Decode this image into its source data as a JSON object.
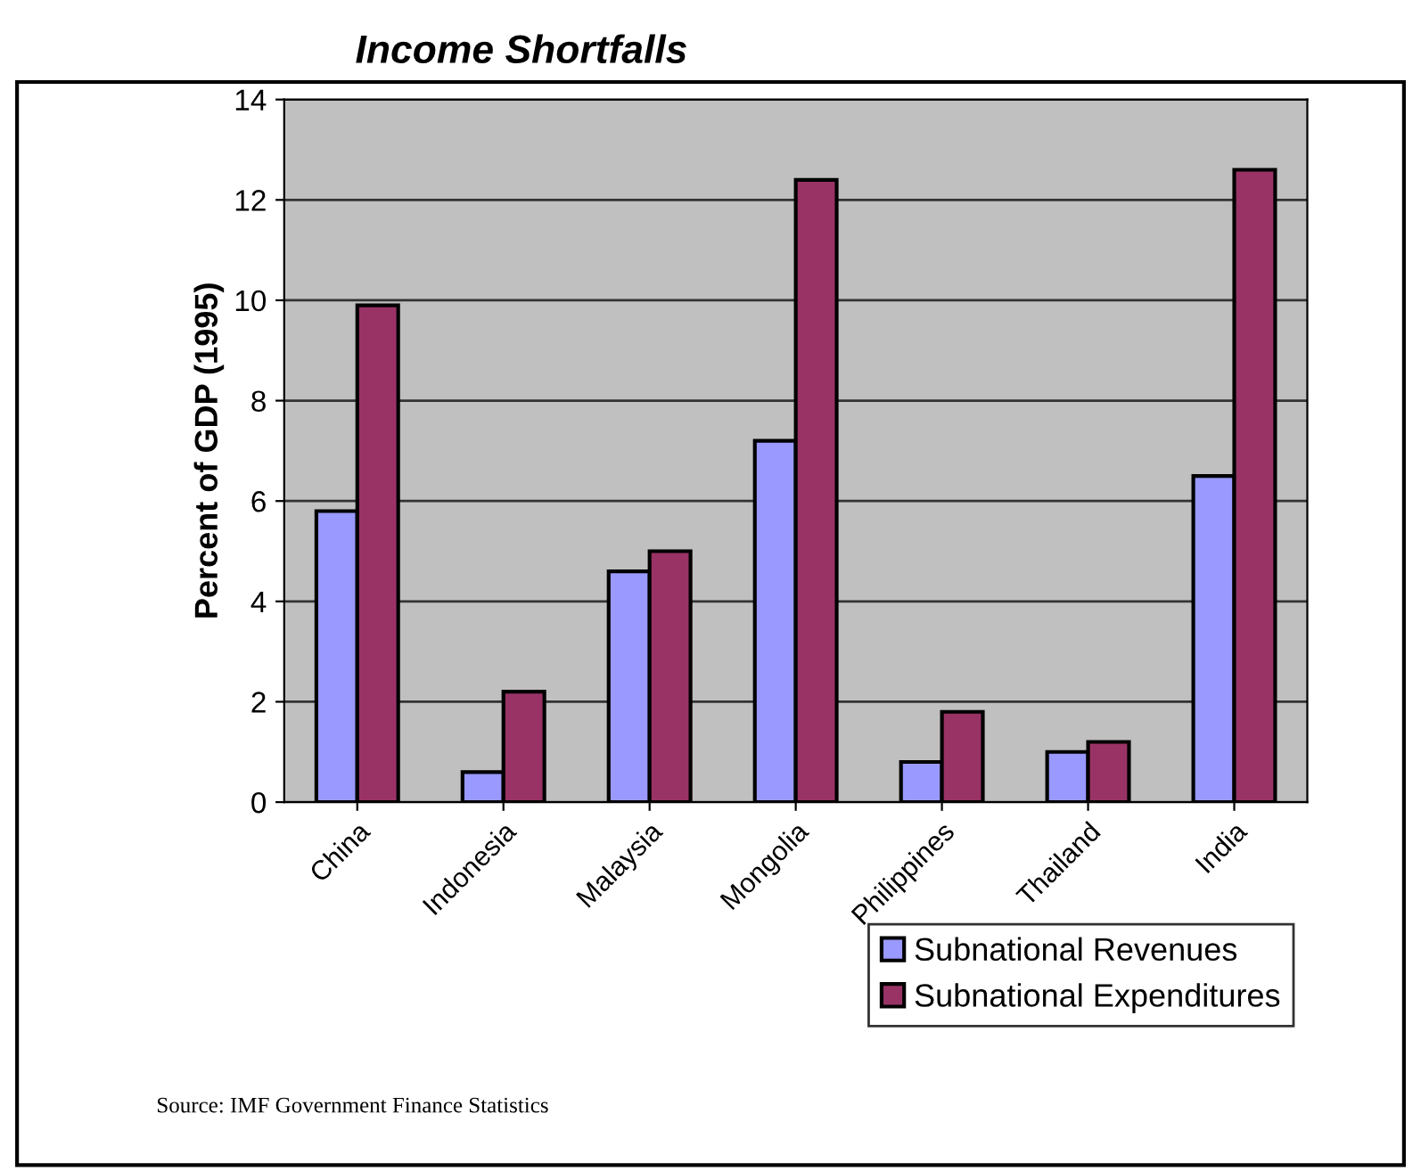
{
  "chart_data": {
    "type": "bar",
    "title": "Income Shortfalls",
    "ylabel": "Percent of GDP (1995)",
    "categories": [
      "China",
      "Indonesia",
      "Malaysia",
      "Mongolia",
      "Philippines",
      "Thailand",
      "India"
    ],
    "series": [
      {
        "name": "Subnational Revenues",
        "color": "#9999ff",
        "values": [
          5.8,
          0.6,
          4.6,
          7.2,
          0.8,
          1.0,
          6.5
        ]
      },
      {
        "name": "Subnational Expenditures",
        "color": "#993366",
        "values": [
          9.9,
          2.2,
          5.0,
          12.4,
          1.8,
          1.2,
          12.6
        ]
      }
    ],
    "ylim": [
      0,
      14
    ],
    "yticks": [
      0,
      2,
      4,
      6,
      8,
      10,
      12,
      14
    ],
    "grid": "y",
    "legend": "bottom right",
    "annotations": [
      "Source: IMF Government Finance Statistics"
    ]
  }
}
